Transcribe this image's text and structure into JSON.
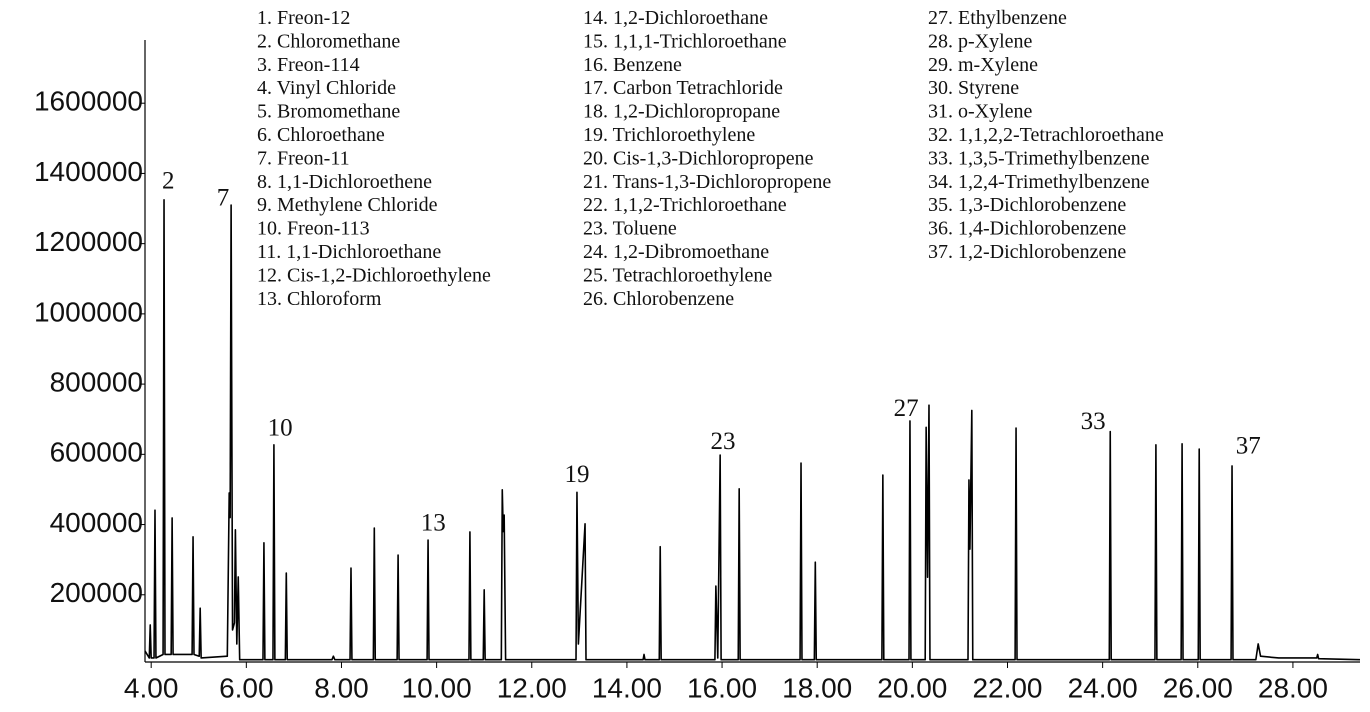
{
  "chart_data": {
    "type": "line",
    "compounds": [
      "1. Freon-12",
      "2. Chloromethane",
      "3. Freon-114",
      "4. Vinyl Chloride",
      "5. Bromomethane",
      "6. Chloroethane",
      "7. Freon-11",
      "8. 1,1-Dichloroethene",
      "9. Methylene Chloride",
      "10. Freon-113",
      "11. 1,1-Dichloroethane",
      "12. Cis-1,2-Dichloroethylene",
      "13. Chloroform",
      "14. 1,2-Dichloroethane",
      "15. 1,1,1-Trichloroethane",
      "16. Benzene",
      "17. Carbon Tetrachloride",
      "18. 1,2-Dichloropropane",
      "19. Trichloroethylene",
      "20. Cis-1,3-Dichloropropene",
      "21. Trans-1,3-Dichloropropene",
      "22. 1,1,2-Trichloroethane",
      "23. Toluene",
      "24. 1,2-Dibromoethane",
      "25. Tetrachloroethylene",
      "26. Chlorobenzene",
      "27. Ethylbenzene",
      "28. p-Xylene",
      "29. m-Xylene",
      "30. Styrene",
      "31. o-Xylene",
      "32. 1,1,2,2-Tetrachloroethane",
      "33. 1,3,5-Trimethylbenzene",
      "34. 1,2,4-Trimethylbenzene",
      "35. 1,3-Dichlorobenzene",
      "36. 1,4-Dichlorobenzene",
      "37. 1,2-Dichlorobenzene"
    ],
    "annotations": [
      {
        "text": "2",
        "x": 4.36,
        "y": 1373000
      },
      {
        "text": "7",
        "x": 5.51,
        "y": 1325000
      },
      {
        "text": "10",
        "x": 6.71,
        "y": 670000
      },
      {
        "text": "13",
        "x": 9.93,
        "y": 399000
      },
      {
        "text": "19",
        "x": 12.95,
        "y": 538000
      },
      {
        "text": "23",
        "x": 16.02,
        "y": 632000
      },
      {
        "text": "27",
        "x": 19.87,
        "y": 726000
      },
      {
        "text": "33",
        "x": 23.8,
        "y": 689000
      },
      {
        "text": "37",
        "x": 27.06,
        "y": 618000
      }
    ],
    "x": [
      3.87,
      3.96,
      3.98,
      4.0,
      4.06,
      4.08,
      4.1,
      4.25,
      4.27,
      4.29,
      4.42,
      4.44,
      4.46,
      4.86,
      4.88,
      4.9,
      5.01,
      5.03,
      5.05,
      5.6,
      5.64,
      5.66,
      5.68,
      5.71,
      5.75,
      5.77,
      5.8,
      5.83,
      5.86,
      6.35,
      6.37,
      6.39,
      6.56,
      6.58,
      6.6,
      6.82,
      6.84,
      6.86,
      7.8,
      7.83,
      7.86,
      8.18,
      8.2,
      8.22,
      8.67,
      8.69,
      8.71,
      9.17,
      9.19,
      9.21,
      9.8,
      9.82,
      9.84,
      10.68,
      10.7,
      10.72,
      10.98,
      11.0,
      11.02,
      11.36,
      11.38,
      11.4,
      11.42,
      11.45,
      12.93,
      12.95,
      12.98,
      13.12,
      13.14,
      14.34,
      14.36,
      14.38,
      14.68,
      14.7,
      14.72,
      15.85,
      15.87,
      15.91,
      15.96,
      15.98,
      16.34,
      16.36,
      16.38,
      17.64,
      17.66,
      17.68,
      17.94,
      17.96,
      17.98,
      19.36,
      19.38,
      19.4,
      19.93,
      19.95,
      19.97,
      20.27,
      20.29,
      20.32,
      20.35,
      20.37,
      21.17,
      21.19,
      21.21,
      21.25,
      21.27,
      22.16,
      22.18,
      22.2,
      24.14,
      24.16,
      24.18,
      25.1,
      25.12,
      25.14,
      25.65,
      25.67,
      25.69,
      26.01,
      26.03,
      26.05,
      26.7,
      26.72,
      26.74,
      27.22,
      27.27,
      27.32,
      27.7,
      28.5,
      28.52,
      28.54,
      29.41
    ],
    "series": [
      {
        "color": "#000000",
        "values": [
          40000,
          20000,
          114000,
          20000,
          20000,
          441000,
          20000,
          30000,
          1325000,
          30000,
          30000,
          419000,
          30000,
          30000,
          365000,
          30000,
          25000,
          162000,
          20000,
          25000,
          490000,
          420000,
          1310000,
          100000,
          120000,
          385000,
          60000,
          251000,
          15000,
          15000,
          348000,
          15000,
          15000,
          627000,
          15000,
          15000,
          262000,
          15000,
          15000,
          25000,
          15000,
          15000,
          276000,
          15000,
          15000,
          390000,
          15000,
          15000,
          313000,
          15000,
          15000,
          356000,
          15000,
          15000,
          379000,
          15000,
          15000,
          214000,
          15000,
          15000,
          499000,
          380000,
          427000,
          15000,
          15000,
          492000,
          60000,
          402000,
          15000,
          15000,
          30000,
          15000,
          15000,
          337000,
          15000,
          15000,
          225000,
          20000,
          598000,
          15000,
          15000,
          502000,
          15000,
          15000,
          575000,
          15000,
          15000,
          293000,
          15000,
          15000,
          541000,
          15000,
          15000,
          695000,
          15000,
          15000,
          677000,
          250000,
          740000,
          15000,
          15000,
          527000,
          330000,
          725000,
          15000,
          15000,
          675000,
          15000,
          15000,
          665000,
          15000,
          15000,
          627000,
          15000,
          15000,
          630000,
          15000,
          15000,
          615000,
          15000,
          15000,
          567000,
          15000,
          15000,
          60000,
          25000,
          20000,
          20000,
          30000,
          18000,
          15000
        ]
      }
    ],
    "xlim": [
      3.87,
      29.41
    ],
    "ylim": [
      0,
      1780000
    ],
    "xticks": [
      {
        "value": 4,
        "label": "4.00"
      },
      {
        "value": 6,
        "label": "6.00"
      },
      {
        "value": 8,
        "label": "8.00"
      },
      {
        "value": 10,
        "label": "10.00"
      },
      {
        "value": 12,
        "label": "12.00"
      },
      {
        "value": 14,
        "label": "14.00"
      },
      {
        "value": 16,
        "label": "16.00"
      },
      {
        "value": 18,
        "label": "18.00"
      },
      {
        "value": 20,
        "label": "20.00"
      },
      {
        "value": 22,
        "label": "22.00"
      },
      {
        "value": 24,
        "label": "24.00"
      },
      {
        "value": 26,
        "label": "26.00"
      },
      {
        "value": 28,
        "label": "28.00"
      }
    ],
    "yticks": [
      200000,
      400000,
      600000,
      800000,
      1000000,
      1200000,
      1400000,
      1600000
    ],
    "grid": false
  }
}
